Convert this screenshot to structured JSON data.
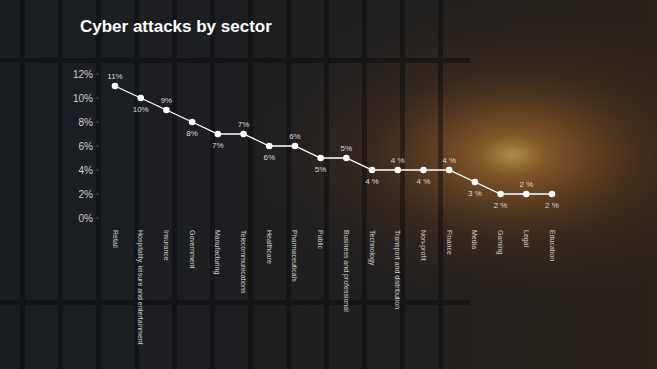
{
  "chart_data": {
    "type": "line",
    "title": "Cyber attacks by sector",
    "categories": [
      "Retail",
      "Hospitality, leisure and entertainment",
      "Insurance",
      "Government",
      "Manufacturing",
      "Telecommunications",
      "Healthcare",
      "Pharmaceuticals",
      "Public",
      "Business and professional",
      "Technology",
      "Transport and distribution",
      "Non-profit",
      "Finance",
      "Media",
      "Gaming",
      "Legal",
      "Education"
    ],
    "values": [
      11,
      10,
      9,
      8,
      7,
      7,
      6,
      6,
      5,
      5,
      4,
      4,
      4,
      4,
      3,
      2,
      2,
      2
    ],
    "value_labels": [
      "11%",
      "10%",
      "9%",
      "8%",
      "7%",
      "7%",
      "6%",
      "6%",
      "5%",
      "5%",
      "4 %",
      "4 %",
      "4 %",
      "4 %",
      "3 %",
      "2 %",
      "2 %",
      "2 %"
    ],
    "color": "#ffffff",
    "marker": "circle",
    "line_style": "solid",
    "data_labels": true,
    "grid": false,
    "ylim": [
      0,
      12
    ],
    "yticks": [
      {
        "value": 0,
        "label": "0%"
      },
      {
        "value": 2,
        "label": "2%"
      },
      {
        "value": 4,
        "label": "4%"
      },
      {
        "value": 6,
        "label": "6%"
      },
      {
        "value": 8,
        "label": "8%"
      },
      {
        "value": 10,
        "label": "10%"
      },
      {
        "value": 12,
        "label": "12%"
      }
    ]
  }
}
